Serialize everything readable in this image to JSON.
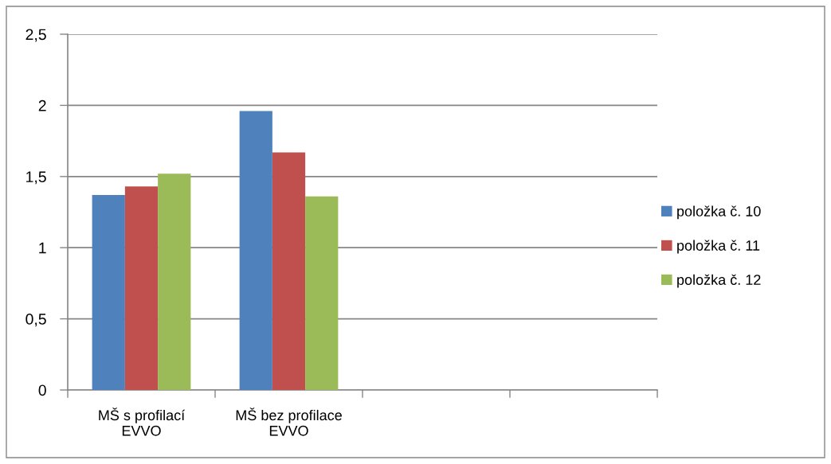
{
  "chart_data": {
    "type": "bar",
    "categories": [
      "MŠ s profilací\nEVVO",
      "MŠ bez profilace\nEVVO",
      null,
      null
    ],
    "series": [
      {
        "name": "položka č. 10",
        "color": "#4f81bd",
        "values": [
          1.37,
          1.96,
          null,
          null
        ]
      },
      {
        "name": "položka č. 11",
        "color": "#c0504d",
        "values": [
          1.43,
          1.67,
          null,
          null
        ]
      },
      {
        "name": "položka č. 12",
        "color": "#9bbb59",
        "values": [
          1.52,
          1.36,
          null,
          null
        ]
      }
    ],
    "ylim": [
      0,
      2.5
    ],
    "yticks": [
      0,
      {
        "value": 0.5,
        "label": "0,5"
      },
      1,
      {
        "value": 1.5,
        "label": "1,5"
      },
      2,
      {
        "value": 2.5,
        "label": "2,5"
      }
    ],
    "grid": "y",
    "legend": "right"
  }
}
